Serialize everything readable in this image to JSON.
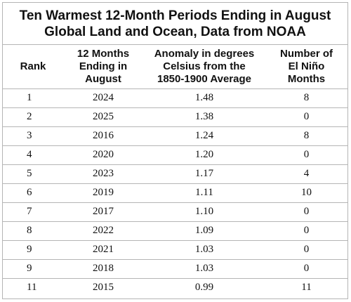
{
  "chart_data": {
    "type": "table",
    "title_lines": [
      "Ten Warmest 12-Month Periods Ending in August",
      "Global Land and Ocean, Data from NOAA"
    ],
    "columns": [
      "Rank",
      "12 Months\nEnding in\nAugust",
      "Anomaly in degrees\nCelsius from the\n1850-1900 Average",
      "Number of\nEl Niño\nMonths"
    ],
    "rows": [
      [
        "1",
        "2024",
        "1.48",
        "8"
      ],
      [
        "2",
        "2025",
        "1.38",
        "0"
      ],
      [
        "3",
        "2016",
        "1.24",
        "8"
      ],
      [
        "4",
        "2020",
        "1.20",
        "0"
      ],
      [
        "5",
        "2023",
        "1.17",
        "4"
      ],
      [
        "6",
        "2019",
        "1.11",
        "10"
      ],
      [
        "7",
        "2017",
        "1.10",
        "0"
      ],
      [
        "8",
        "2022",
        "1.09",
        "0"
      ],
      [
        "9",
        "2021",
        "1.03",
        "0"
      ],
      [
        "9",
        "2018",
        "1.03",
        "0"
      ],
      [
        "11",
        "2015",
        "0.99",
        "11"
      ]
    ]
  }
}
